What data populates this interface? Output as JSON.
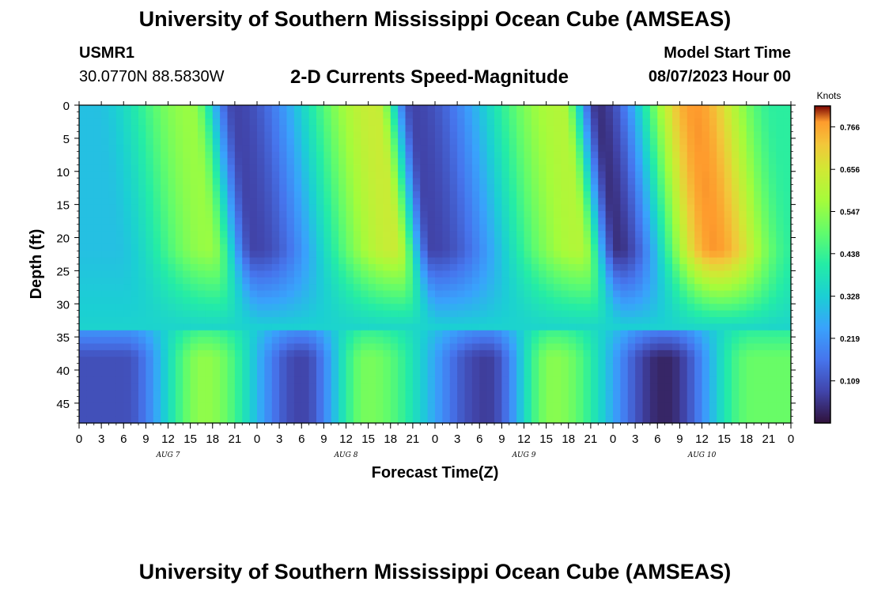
{
  "header": {
    "title": "University of Southern Mississippi Ocean Cube (AMSEAS)",
    "station_id": "USMR1",
    "station_coords": "30.0770N  88.5830W",
    "chart_title": "2-D Currents Speed-Magnitude",
    "model_start_label": "Model Start Time",
    "model_start_value": "08/07/2023 Hour 00"
  },
  "footer": {
    "title": "University of Southern Mississippi Ocean Cube (AMSEAS)"
  },
  "chart_data": {
    "type": "heatmap",
    "title": "2-D Currents Speed-Magnitude",
    "xlabel": "Forecast Time(Z)",
    "ylabel": "Depth (ft)",
    "x_ticks": [
      "0",
      "3",
      "6",
      "9",
      "12",
      "15",
      "18",
      "21",
      "0",
      "3",
      "6",
      "9",
      "12",
      "15",
      "18",
      "21",
      "0",
      "3",
      "6",
      "9",
      "12",
      "15",
      "18",
      "21",
      "0",
      "3",
      "6",
      "9",
      "12",
      "15",
      "18",
      "21",
      "0"
    ],
    "day_labels": [
      "AUG 7",
      "AUG 8",
      "AUG 9",
      "AUG 10"
    ],
    "x_range_hours": [
      0,
      96
    ],
    "y_ticks": [
      0,
      5,
      10,
      15,
      20,
      25,
      30,
      35,
      40,
      45
    ],
    "y_range_ft": [
      0,
      48
    ],
    "y_inverted": true,
    "colorbar": {
      "unit": "Knots",
      "ticks": [
        "0.766",
        "0.656",
        "0.547",
        "0.438",
        "0.328",
        "0.219",
        "0.109"
      ],
      "range": [
        0,
        0.82
      ]
    },
    "surface_fast_periods": [
      {
        "hour": 15,
        "speed": 0.56
      },
      {
        "hour": 40,
        "speed": 0.64
      },
      {
        "hour": 65,
        "speed": 0.6
      },
      {
        "hour": 83,
        "speed": 0.78
      }
    ],
    "surface_slow_periods": [
      {
        "hour": 2,
        "speed": 0.3
      },
      {
        "hour": 21,
        "speed": 0.08
      },
      {
        "hour": 45,
        "speed": 0.08
      },
      {
        "hour": 70,
        "speed": 0.05
      },
      {
        "hour": 94,
        "speed": 0.42
      }
    ],
    "bottom_fast_periods": [
      {
        "hour": 17,
        "speed": 0.55
      },
      {
        "hour": 39,
        "speed": 0.52
      },
      {
        "hour": 64,
        "speed": 0.54
      },
      {
        "hour": 91,
        "speed": 0.5
      }
    ],
    "bottom_slow_periods": [
      {
        "hour": 6,
        "speed": 0.1
      },
      {
        "hour": 30,
        "speed": 0.08
      },
      {
        "hour": 55,
        "speed": 0.07
      },
      {
        "hour": 79,
        "speed": 0.03
      }
    ]
  }
}
